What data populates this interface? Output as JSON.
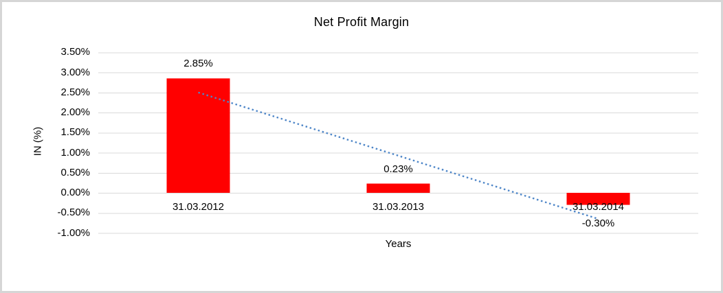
{
  "window": {
    "background_color": "#ffffff",
    "frame_border_color": "#d6d6d6"
  },
  "chart_data": {
    "type": "bar",
    "title": "Net Profit Margin",
    "xlabel": "Years",
    "ylabel": "IN (%)",
    "categories": [
      "31.03.2012",
      "31.03.2013",
      "31.03.2014"
    ],
    "series": [
      {
        "name": "Net Profit Margin",
        "values": [
          2.85,
          0.23,
          -0.3
        ],
        "data_labels": [
          "2.85%",
          "0.23%",
          "-0.30%"
        ],
        "color": "#ff0000"
      }
    ],
    "ylim": [
      -1.0,
      3.5
    ],
    "ytick_step": 0.5,
    "ytick_labels": [
      "3.50%",
      "3.00%",
      "2.50%",
      "2.00%",
      "1.50%",
      "1.00%",
      "0.50%",
      "0.00%",
      "-0.50%",
      "-1.00%"
    ],
    "grid": true,
    "gridline_color": "#d9d9d9",
    "legend": "none",
    "trendline": {
      "type": "linear",
      "style": "dotted",
      "color": "#4e86c8",
      "start_value": 2.5,
      "end_value": -0.65
    },
    "text_color": "#000000"
  }
}
